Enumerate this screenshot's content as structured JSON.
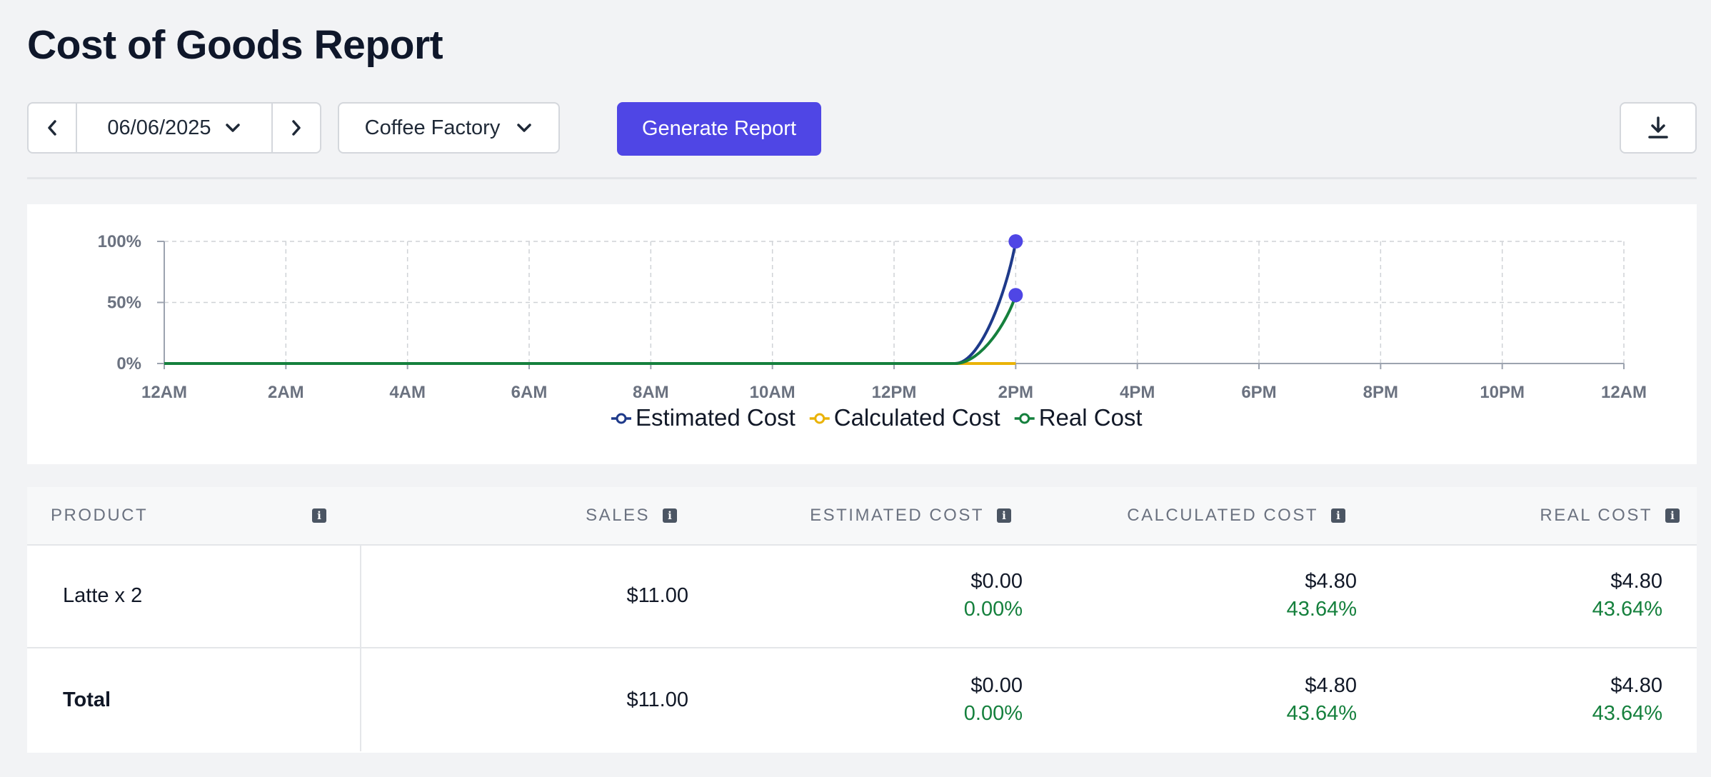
{
  "page": {
    "title": "Cost of Goods Report"
  },
  "toolbar": {
    "date": "06/06/2025",
    "location": "Coffee Factory",
    "generate_label": "Generate Report",
    "icons": {
      "prev": "chevron-left-icon",
      "next": "chevron-right-icon",
      "dropdown": "chevron-down-icon",
      "download": "download-icon"
    }
  },
  "colors": {
    "accent": "#4f46e5",
    "estimated": "#1e3a8a",
    "calculated": "#eab308",
    "real": "#15803d",
    "positive": "#15803d"
  },
  "chart_data": {
    "type": "line",
    "x_ticks": [
      "12AM",
      "2AM",
      "4AM",
      "6AM",
      "8AM",
      "10AM",
      "12PM",
      "2PM",
      "4PM",
      "6PM",
      "8PM",
      "10PM",
      "12AM"
    ],
    "y_ticks": [
      "0%",
      "50%",
      "100%"
    ],
    "ylim": [
      0,
      100
    ],
    "xlim_hours": [
      0,
      24
    ],
    "grid": true,
    "legend_position": "bottom",
    "series": [
      {
        "name": "Estimated Cost",
        "x_hours": [
          0,
          13,
          14
        ],
        "values": [
          0,
          0,
          100
        ]
      },
      {
        "name": "Calculated Cost",
        "x_hours": [
          0,
          13,
          14
        ],
        "values": [
          0,
          0,
          0
        ]
      },
      {
        "name": "Real Cost",
        "x_hours": [
          0,
          13,
          14
        ],
        "values": [
          0,
          0,
          56
        ]
      }
    ]
  },
  "table": {
    "headers": {
      "product": "PRODUCT",
      "sales": "SALES",
      "estimated": "ESTIMATED COST",
      "calculated": "CALCULATED COST",
      "real": "REAL COST"
    },
    "rows": [
      {
        "product": "Latte x 2",
        "sales": "$11.00",
        "estimated": "$0.00",
        "estimated_pct": "0.00%",
        "calculated": "$4.80",
        "calculated_pct": "43.64%",
        "real": "$4.80",
        "real_pct": "43.64%"
      }
    ],
    "total": {
      "product": "Total",
      "sales": "$11.00",
      "estimated": "$0.00",
      "estimated_pct": "0.00%",
      "calculated": "$4.80",
      "calculated_pct": "43.64%",
      "real": "$4.80",
      "real_pct": "43.64%"
    }
  }
}
